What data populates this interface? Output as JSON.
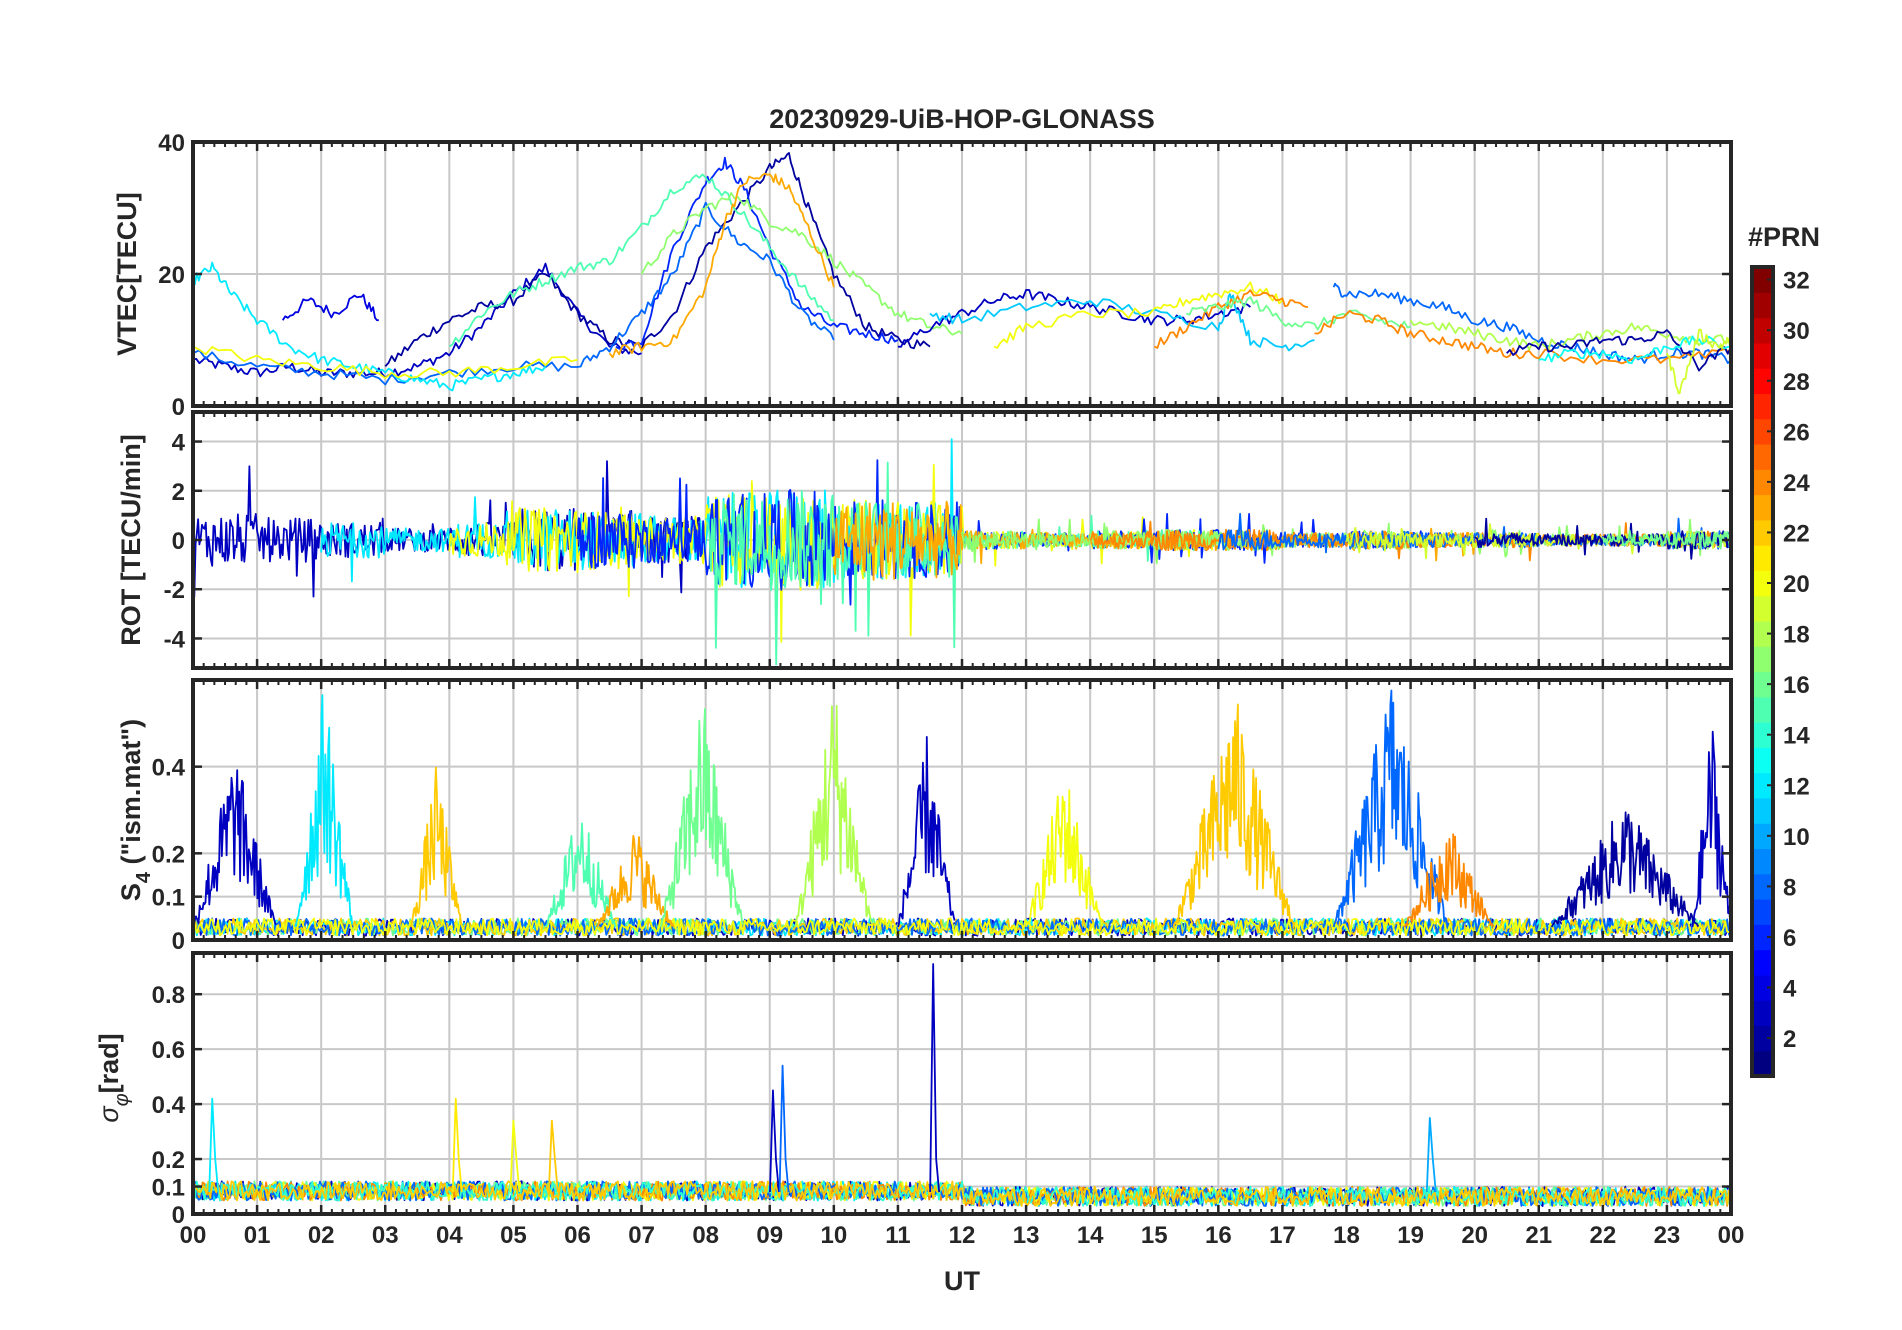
{
  "chart_data": {
    "type": "line",
    "title": "20230929-UiB-HOP-GLONASS",
    "xlabel": "UT",
    "x_tick_labels": [
      "00",
      "01",
      "02",
      "03",
      "04",
      "05",
      "06",
      "07",
      "08",
      "09",
      "10",
      "11",
      "12",
      "13",
      "14",
      "15",
      "16",
      "17",
      "18",
      "19",
      "20",
      "21",
      "22",
      "23",
      "00"
    ],
    "xlim": [
      0,
      24
    ],
    "colorbar": {
      "title": "#PRN",
      "range": [
        1,
        32
      ],
      "ticks": [
        "2",
        "4",
        "6",
        "8",
        "10",
        "12",
        "14",
        "16",
        "18",
        "20",
        "22",
        "24",
        "26",
        "28",
        "30",
        "32"
      ],
      "colormap": "jet"
    },
    "panels": [
      {
        "id": "vtec",
        "ylabel": "VTEC[TECU]",
        "ylim": [
          0,
          40
        ],
        "yticks": [
          0,
          20,
          40
        ],
        "ytick_labels": [
          "0",
          "20",
          "40"
        ],
        "series": [
          {
            "prn": 3,
            "x": [
              0.0,
              0.5,
              1.0,
              1.5,
              2.0,
              2.5,
              3.0,
              3.5,
              4.0,
              4.5,
              5.0,
              5.5,
              6.0,
              6.5,
              7.0
            ],
            "y": [
              7,
              6,
              5,
              6,
              5,
              5,
              5,
              6,
              8,
              12,
              17,
              21,
              14,
              9,
              8
            ]
          },
          {
            "prn": 4,
            "x": [
              1.4,
              1.8,
              2.2,
              2.6,
              2.9
            ],
            "y": [
              13,
              16,
              14,
              17,
              13
            ]
          },
          {
            "prn": 2,
            "x": [
              3.0,
              3.5,
              4.0,
              4.5,
              5.0,
              5.5,
              6.0,
              6.5,
              7.0,
              7.5,
              8.0,
              8.5,
              9.0,
              9.3,
              9.6,
              10.0,
              10.5,
              11.0,
              11.5
            ],
            "y": [
              6,
              10,
              13,
              15,
              16,
              20,
              14,
              10,
              9,
              14,
              24,
              30,
              36,
              38,
              30,
              20,
              12,
              10,
              9
            ]
          },
          {
            "prn": 6,
            "x": [
              6.6,
              7.0,
              7.5,
              8.0,
              8.3,
              8.6,
              9.0,
              9.5,
              10.0,
              10.5,
              11.0
            ],
            "y": [
              9,
              10,
              24,
              34,
              37,
              33,
              24,
              15,
              12,
              11,
              10
            ]
          },
          {
            "prn": 8,
            "x": [
              0.0,
              1.0,
              2.0,
              3.0,
              4.0,
              5.0,
              6.0,
              6.5,
              7.0,
              7.5,
              8.0,
              8.5,
              9.0,
              9.5,
              10.0
            ],
            "y": [
              8,
              6,
              5,
              4,
              5,
              6,
              6,
              9,
              14,
              20,
              30,
              25,
              22,
              14,
              10
            ]
          },
          {
            "prn": 12,
            "x": [
              0.0,
              0.3,
              0.6,
              1.0,
              1.5,
              2.0,
              2.5,
              3.0,
              3.5,
              4.0,
              4.5,
              5.0,
              5.5
            ],
            "y": [
              19,
              21,
              17,
              13,
              9,
              7,
              6,
              5,
              4,
              3,
              4,
              5,
              6
            ]
          },
          {
            "prn": 15,
            "x": [
              4.0,
              4.5,
              5.0,
              5.5,
              6.0,
              6.5,
              7.0,
              7.5,
              8.0,
              8.5,
              9.0,
              9.5,
              10.0
            ],
            "y": [
              9,
              14,
              17,
              19,
              21,
              22,
              27,
              33,
              35,
              30,
              24,
              18,
              13
            ]
          },
          {
            "prn": 17,
            "x": [
              7.0,
              7.5,
              8.0,
              8.5,
              9.0,
              9.5,
              10.0,
              10.5,
              11.0,
              11.5,
              12.0
            ],
            "y": [
              20,
              26,
              30,
              32,
              28,
              26,
              22,
              18,
              14,
              12,
              11
            ]
          },
          {
            "prn": 23,
            "x": [
              6.5,
              7.0,
              7.5,
              8.0,
              8.3,
              8.6,
              9.0,
              9.3,
              9.6,
              10.0
            ],
            "y": [
              8,
              9,
              10,
              18,
              28,
              34,
              35,
              33,
              27,
              18
            ]
          },
          {
            "prn": 20,
            "x": [
              0.0,
              1.0,
              2.0,
              3.0,
              4.0,
              5.0,
              6.0
            ],
            "y": [
              9,
              7,
              6,
              5,
              5,
              6,
              7
            ]
          },
          {
            "prn": 3,
            "x": [
              11.0,
              11.5,
              12.0,
              12.5,
              13.0,
              13.5,
              14.0,
              14.5,
              15.0,
              15.5,
              16.0,
              16.5
            ],
            "y": [
              9,
              12,
              14,
              16,
              17,
              16,
              15,
              14,
              13,
              13,
              14,
              15
            ]
          },
          {
            "prn": 11,
            "x": [
              11.5,
              12.0,
              13.0,
              14.0,
              15.0,
              16.0,
              16.2,
              16.5,
              17.0,
              17.5
            ],
            "y": [
              14,
              13,
              15,
              16,
              14,
              12,
              17,
              10,
              9,
              10
            ]
          },
          {
            "prn": 20,
            "x": [
              12.5,
              13.0,
              14.0,
              15.0,
              15.5,
              16.0,
              16.5,
              17.0
            ],
            "y": [
              9,
              12,
              14,
              14,
              16,
              17,
              18,
              16
            ]
          },
          {
            "prn": 24,
            "x": [
              15.0,
              15.5,
              16.0,
              16.5,
              17.0,
              17.4
            ],
            "y": [
              9,
              12,
              15,
              17,
              16,
              15
            ]
          },
          {
            "prn": 16,
            "x": [
              15.5,
              16.0,
              16.5,
              17.0,
              17.5,
              18.0,
              18.5,
              19.0
            ],
            "y": [
              14,
              15,
              16,
              13,
              12,
              14,
              13,
              12
            ]
          },
          {
            "prn": 8,
            "x": [
              17.8,
              18.0,
              18.5,
              19.0,
              19.5,
              20.0,
              20.5,
              21.0,
              21.5,
              22.0,
              22.5,
              23.0,
              23.5,
              24.0
            ],
            "y": [
              18,
              17,
              17,
              16,
              15,
              13,
              12,
              10,
              9,
              8,
              7,
              8,
              8,
              7
            ]
          },
          {
            "prn": 24,
            "x": [
              17.5,
              18.0,
              18.5,
              19.0,
              19.5,
              20.0,
              20.5,
              21.0,
              22.0,
              23.0,
              24.0
            ],
            "y": [
              11,
              14,
              13,
              11,
              10,
              9,
              8,
              8,
              7,
              7,
              8
            ]
          },
          {
            "prn": 18,
            "x": [
              19.0,
              19.5,
              20.0,
              20.5,
              21.0,
              21.5,
              22.0,
              22.5,
              23.0,
              23.5,
              24.0
            ],
            "y": [
              13,
              12,
              11,
              10,
              9,
              10,
              11,
              12,
              11,
              10,
              10
            ]
          },
          {
            "prn": 2,
            "x": [
              20.5,
              21.0,
              21.5,
              22.0,
              22.5,
              23.0,
              23.5,
              24.0
            ],
            "y": [
              8,
              9,
              9,
              10,
              10,
              11,
              6,
              9
            ]
          },
          {
            "prn": 13,
            "x": [
              21.0,
              21.5,
              22.0,
              22.5,
              23.0,
              23.5,
              24.0
            ],
            "y": [
              7,
              8,
              8,
              7,
              9,
              10,
              9
            ]
          },
          {
            "prn": 19,
            "x": [
              23.0,
              23.2,
              23.5,
              23.8,
              24.0
            ],
            "y": [
              8,
              2,
              11,
              9,
              10
            ]
          }
        ]
      },
      {
        "id": "rot",
        "ylabel": "ROT [TECU/min]",
        "ylim": [
          -5.2,
          5.2
        ],
        "yticks": [
          -4,
          -2,
          0,
          2,
          4
        ],
        "ytick_labels": [
          "-4",
          "-2",
          "0",
          "2",
          "4"
        ],
        "envelope_by_hour": [
          1.8,
          1.5,
          1.2,
          0.8,
          1.2,
          2.2,
          2.0,
          1.6,
          3.2,
          3.4,
          2.8,
          2.6,
          0.6,
          0.5,
          0.6,
          0.7,
          0.7,
          0.5,
          0.6,
          0.5,
          0.5,
          0.4,
          0.4,
          0.6
        ],
        "series_prns": [
          3,
          12,
          20,
          6,
          15,
          23,
          17,
          24,
          8,
          19,
          2,
          16
        ]
      },
      {
        "id": "s4",
        "ylabel": "S₄ (\"ism.mat\")",
        "ylabel_main": "S",
        "ylabel_sub": "4",
        "ylabel_rest": " (\"ism.mat\")",
        "ylim": [
          0,
          0.6
        ],
        "yticks": [
          0,
          0.1,
          0.2,
          0.4
        ],
        "ytick_labels": [
          "0",
          "0.1",
          "0.2",
          "0.4"
        ],
        "bursts": [
          {
            "prn": 3,
            "t0": 0.0,
            "t1": 1.3,
            "peak": 0.42
          },
          {
            "prn": 12,
            "t0": 1.6,
            "t1": 2.5,
            "peak": 0.58
          },
          {
            "prn": 22,
            "t0": 3.4,
            "t1": 4.2,
            "peak": 0.38
          },
          {
            "prn": 15,
            "t0": 5.5,
            "t1": 6.6,
            "peak": 0.3
          },
          {
            "prn": 23,
            "t0": 6.3,
            "t1": 7.5,
            "peak": 0.24
          },
          {
            "prn": 16,
            "t0": 7.3,
            "t1": 8.6,
            "peak": 0.55
          },
          {
            "prn": 18,
            "t0": 9.4,
            "t1": 10.6,
            "peak": 0.58
          },
          {
            "prn": 3,
            "t0": 11.0,
            "t1": 11.9,
            "peak": 0.45
          },
          {
            "prn": 20,
            "t0": 13.0,
            "t1": 14.2,
            "peak": 0.38
          },
          {
            "prn": 22,
            "t0": 15.3,
            "t1": 17.2,
            "peak": 0.55
          },
          {
            "prn": 8,
            "t0": 17.8,
            "t1": 19.6,
            "peak": 0.58
          },
          {
            "prn": 24,
            "t0": 18.9,
            "t1": 20.3,
            "peak": 0.25
          },
          {
            "prn": 2,
            "t0": 21.2,
            "t1": 23.5,
            "peak": 0.3
          },
          {
            "prn": 3,
            "t0": 23.4,
            "t1": 24.0,
            "peak": 0.5
          }
        ]
      },
      {
        "id": "sigma",
        "ylabel": "σφ[rad]",
        "ylabel_main": "σ",
        "ylabel_sub": "φ",
        "ylabel_rest": "[rad]",
        "ylim": [
          0,
          0.95
        ],
        "yticks": [
          0,
          0.1,
          0.2,
          0.4,
          0.6,
          0.8
        ],
        "ytick_labels": [
          "0",
          "0.1",
          "0.2",
          "0.4",
          "0.6",
          "0.8"
        ],
        "spikes": [
          {
            "prn": 12,
            "x": 0.3,
            "y": 0.42
          },
          {
            "prn": 21,
            "x": 4.1,
            "y": 0.42
          },
          {
            "prn": 20,
            "x": 5.0,
            "y": 0.34
          },
          {
            "prn": 22,
            "x": 5.6,
            "y": 0.34
          },
          {
            "prn": 3,
            "x": 9.05,
            "y": 0.45
          },
          {
            "prn": 8,
            "x": 9.2,
            "y": 0.54
          },
          {
            "prn": 3,
            "x": 11.55,
            "y": 0.91
          },
          {
            "prn": 10,
            "x": 19.3,
            "y": 0.35
          }
        ]
      }
    ]
  }
}
